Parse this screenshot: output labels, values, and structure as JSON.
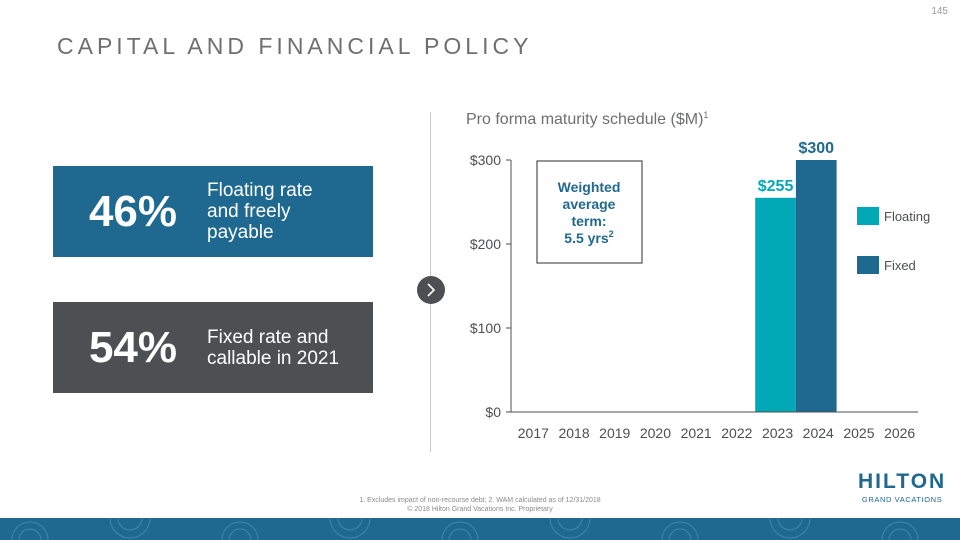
{
  "page": {
    "number": "145",
    "title": "CAPITAL AND FINANCIAL POLICY"
  },
  "cards": [
    {
      "percent": "46%",
      "line1": "Floating rate",
      "line2": "and freely",
      "line3": "payable",
      "color": "#1f6890"
    },
    {
      "percent": "54%",
      "line1": "Fixed rate and",
      "line2": "callable in 2021",
      "color": "#4d4f53"
    }
  ],
  "chart_data": {
    "type": "bar",
    "title": "Pro forma maturity schedule ($M)",
    "title_superscript": "1",
    "categories": [
      "2017",
      "2018",
      "2019",
      "2020",
      "2021",
      "2022",
      "2023",
      "2024",
      "2025",
      "2026"
    ],
    "series": [
      {
        "name": "Floating",
        "color": "#00a9b5",
        "values": [
          0,
          0,
          0,
          0,
          0,
          0,
          255,
          0,
          0,
          0
        ]
      },
      {
        "name": "Fixed",
        "color": "#1f6890",
        "values": [
          0,
          0,
          0,
          0,
          0,
          0,
          0,
          300,
          0,
          0
        ]
      }
    ],
    "data_labels": [
      {
        "category": "2023",
        "series": "Floating",
        "text": "$255"
      },
      {
        "category": "2024",
        "series": "Fixed",
        "text": "$300"
      }
    ],
    "y_ticks": [
      "$0",
      "$100",
      "$200",
      "$300"
    ],
    "y_tick_values": [
      0,
      100,
      200,
      300
    ],
    "ylim": [
      0,
      300
    ],
    "legend_position": "right",
    "grid": false,
    "annotation": {
      "line1": "Weighted",
      "line2": "average",
      "line3": "term:",
      "line4": "5.5 yrs",
      "superscript": "2"
    }
  },
  "footnote": {
    "line1": "1. Excludes impact of non-recourse debt; 2. WAM calculated as of 12/31/2018",
    "line2": "© 2018 Hilton Grand Vacations Inc. Proprietary"
  },
  "logo": {
    "name": "HILTON",
    "tagline": "GRAND VACATIONS"
  },
  "icons": {
    "next": "chevron-right-icon"
  }
}
